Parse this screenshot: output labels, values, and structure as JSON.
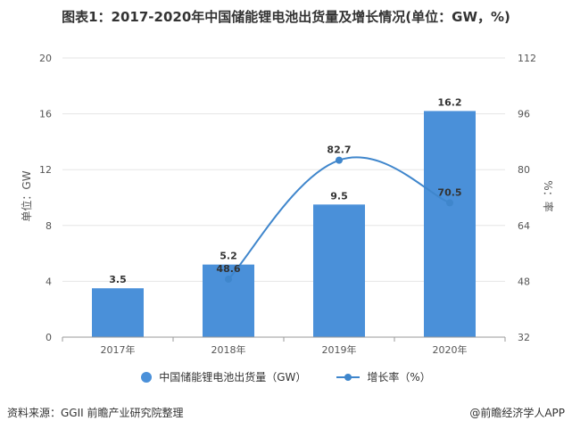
{
  "chart_data": {
    "type": "bar",
    "title": "图表1：2017-2020年中国储能锂电池出货量及增长情况(单位：GW，%)",
    "categories": [
      "2017年",
      "2018年",
      "2019年",
      "2020年"
    ],
    "series": [
      {
        "name": "中国储能锂电池出货量（GW）",
        "type": "bar",
        "axis": "left",
        "values": [
          3.5,
          5.2,
          9.5,
          16.2
        ],
        "color": "#4a90d9"
      },
      {
        "name": "增长率（%）",
        "type": "line",
        "axis": "right",
        "values": [
          null,
          48.6,
          82.7,
          70.5
        ],
        "color": "#3f86cc"
      }
    ],
    "ylabel": "单位：GW",
    "y2label": "%：率",
    "ylim": [
      0,
      20
    ],
    "yticks": [
      0,
      4,
      8,
      12,
      16,
      20
    ],
    "y2lim": [
      32,
      112
    ],
    "y2ticks": [
      32,
      48,
      64,
      80,
      96,
      112
    ],
    "grid": true,
    "legend": "bottom"
  },
  "source": "资料来源：GGII 前瞻产业研究院整理",
  "credit": "@前瞻经济学人APP"
}
